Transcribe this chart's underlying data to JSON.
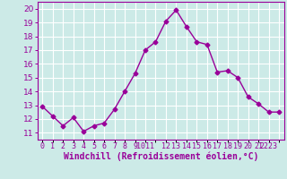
{
  "x": [
    0,
    1,
    2,
    3,
    4,
    5,
    6,
    7,
    8,
    9,
    10,
    11,
    12,
    13,
    14,
    15,
    16,
    17,
    18,
    19,
    20,
    21,
    22,
    23
  ],
  "y": [
    12.9,
    12.2,
    11.5,
    12.1,
    11.1,
    11.5,
    11.7,
    12.7,
    14.0,
    15.3,
    17.0,
    17.6,
    19.1,
    19.9,
    18.7,
    17.6,
    17.4,
    15.4,
    15.5,
    15.0,
    13.6,
    13.1,
    12.5,
    12.5
  ],
  "line_color": "#990099",
  "marker": "D",
  "marker_size": 2.5,
  "line_width": 1.0,
  "xlabel": "Windchill (Refroidissement éolien,°C)",
  "xlim": [
    -0.5,
    23.5
  ],
  "ylim": [
    10.5,
    20.5
  ],
  "yticks": [
    11,
    12,
    13,
    14,
    15,
    16,
    17,
    18,
    19,
    20
  ],
  "background_color": "#cceae7",
  "grid_color": "#ffffff",
  "tick_color": "#990099",
  "label_color": "#990099",
  "xlabel_fontsize": 7.0,
  "tick_fontsize": 6.5
}
